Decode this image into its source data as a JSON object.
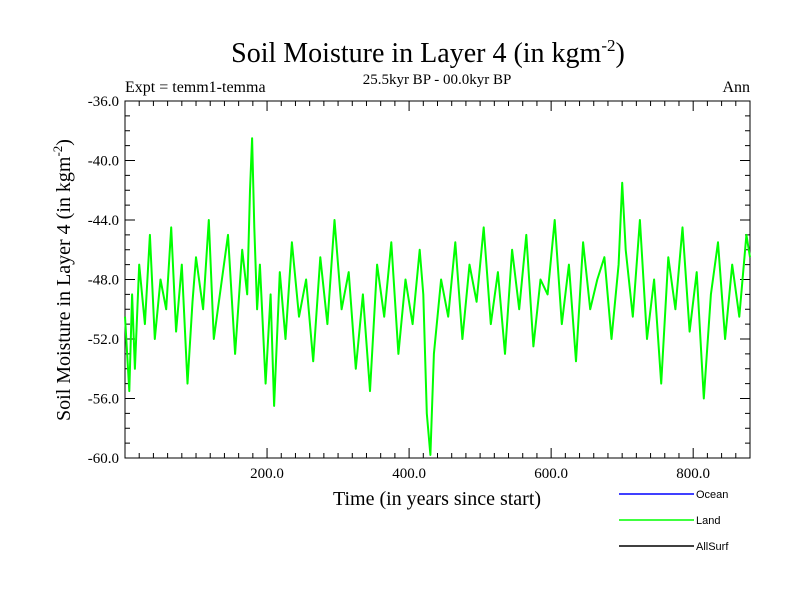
{
  "chart_data": {
    "type": "line",
    "title": "Soil Moisture in Layer 4 (in kgm",
    "title_sup": "-2",
    "title_close": ")",
    "subtitle": "25.5kyr BP - 00.0kyr BP",
    "expt_label": "Expt = temm1-temma",
    "season_label": "Ann",
    "xlabel": "Time (in years since start)",
    "ylabel": "Soil Moisture in Layer 4 (in kgm",
    "ylabel_sup": "-2",
    "ylabel_close": ")",
    "xlim": [
      0,
      880
    ],
    "ylim": [
      -60,
      -36
    ],
    "x_ticks": [
      200,
      400,
      600,
      800
    ],
    "x_tick_labels": [
      "200.0",
      "400.0",
      "600.0",
      "800.0"
    ],
    "y_ticks": [
      -36,
      -40,
      -44,
      -48,
      -52,
      -56,
      -60
    ],
    "y_tick_labels": [
      "-36.0",
      "-40.0",
      "-44.0",
      "-48.0",
      "-52.0",
      "-56.0",
      "-60.0"
    ],
    "legend_position": "bottom-right",
    "series": [
      {
        "name": "Ocean",
        "color": "#0000ff",
        "values": []
      },
      {
        "name": "Land",
        "color": "#00ff00",
        "x": [
          0,
          6,
          10,
          14,
          20,
          28,
          35,
          42,
          50,
          58,
          65,
          72,
          80,
          88,
          95,
          100,
          110,
          118,
          125,
          135,
          145,
          155,
          165,
          172,
          176,
          179,
          182,
          186,
          190,
          198,
          205,
          210,
          218,
          226,
          235,
          245,
          255,
          265,
          275,
          285,
          295,
          305,
          315,
          325,
          335,
          345,
          355,
          365,
          375,
          385,
          395,
          405,
          415,
          420,
          425,
          430,
          435,
          445,
          455,
          465,
          475,
          485,
          495,
          505,
          515,
          525,
          535,
          545,
          555,
          565,
          575,
          585,
          595,
          605,
          615,
          625,
          635,
          645,
          655,
          665,
          675,
          685,
          695,
          700,
          705,
          715,
          725,
          735,
          745,
          755,
          765,
          775,
          785,
          795,
          805,
          815,
          825,
          835,
          845,
          855,
          865,
          875,
          880
        ],
        "values": [
          -50.5,
          -55.5,
          -49.0,
          -54.0,
          -47.0,
          -51.0,
          -45.0,
          -52.0,
          -48.0,
          -50.0,
          -44.5,
          -51.5,
          -47.0,
          -55.0,
          -49.5,
          -46.5,
          -50.0,
          -44.0,
          -52.0,
          -48.5,
          -45.0,
          -53.0,
          -46.0,
          -49.0,
          -42.0,
          -38.5,
          -44.5,
          -50.0,
          -47.0,
          -55.0,
          -49.0,
          -56.5,
          -47.5,
          -52.0,
          -45.5,
          -50.5,
          -48.0,
          -53.5,
          -46.5,
          -51.0,
          -44.0,
          -50.0,
          -47.5,
          -54.0,
          -49.0,
          -55.5,
          -47.0,
          -50.5,
          -45.5,
          -53.0,
          -48.0,
          -51.0,
          -46.0,
          -49.0,
          -57.0,
          -59.8,
          -53.0,
          -48.0,
          -50.5,
          -45.5,
          -52.0,
          -47.0,
          -49.5,
          -44.5,
          -51.0,
          -47.5,
          -53.0,
          -46.0,
          -50.0,
          -45.0,
          -52.5,
          -48.0,
          -49.0,
          -44.0,
          -51.0,
          -47.0,
          -53.5,
          -45.5,
          -50.0,
          -48.0,
          -46.5,
          -52.0,
          -47.0,
          -41.5,
          -46.0,
          -50.5,
          -44.0,
          -52.0,
          -48.0,
          -55.0,
          -46.5,
          -50.0,
          -44.5,
          -51.5,
          -47.5,
          -56.0,
          -49.0,
          -45.5,
          -52.0,
          -47.0,
          -50.5,
          -45.0,
          -46.5
        ]
      },
      {
        "name": "AllSurf",
        "color": "#000000",
        "values": []
      }
    ]
  }
}
